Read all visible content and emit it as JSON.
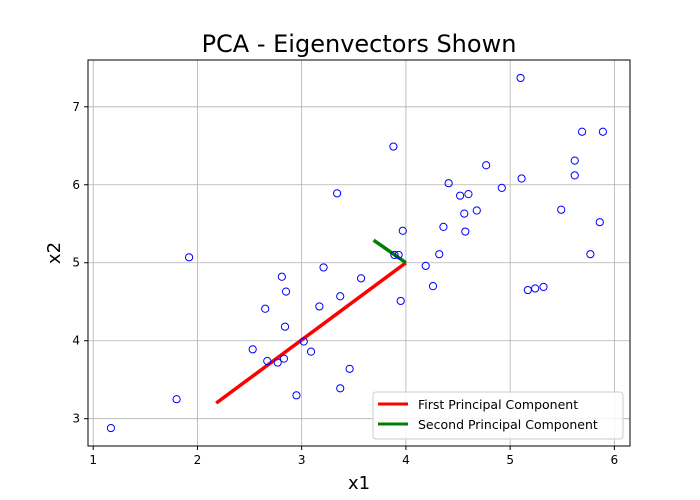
{
  "chart_data": {
    "type": "scatter",
    "title": "PCA - Eigenvectors Shown",
    "xlabel": "x1",
    "ylabel": "x2",
    "xlim": [
      0.95,
      6.15
    ],
    "ylim": [
      2.65,
      7.6
    ],
    "xticks": [
      1,
      2,
      3,
      4,
      5,
      6
    ],
    "yticks": [
      3,
      4,
      5,
      6,
      7
    ],
    "grid": true,
    "legend_position": "bottom-right",
    "colors": {
      "points": "#0000ff",
      "first_component": "#ff0000",
      "second_component": "#008000"
    },
    "points": [
      {
        "x": 1.17,
        "y": 2.88
      },
      {
        "x": 1.8,
        "y": 3.25
      },
      {
        "x": 1.92,
        "y": 5.07
      },
      {
        "x": 2.53,
        "y": 3.89
      },
      {
        "x": 2.65,
        "y": 4.41
      },
      {
        "x": 2.67,
        "y": 3.74
      },
      {
        "x": 2.77,
        "y": 3.72
      },
      {
        "x": 2.81,
        "y": 4.82
      },
      {
        "x": 2.83,
        "y": 3.77
      },
      {
        "x": 2.84,
        "y": 4.18
      },
      {
        "x": 2.85,
        "y": 4.63
      },
      {
        "x": 2.95,
        "y": 3.3
      },
      {
        "x": 3.02,
        "y": 3.99
      },
      {
        "x": 3.09,
        "y": 3.86
      },
      {
        "x": 3.17,
        "y": 4.44
      },
      {
        "x": 3.21,
        "y": 4.94
      },
      {
        "x": 3.34,
        "y": 5.89
      },
      {
        "x": 3.37,
        "y": 3.39
      },
      {
        "x": 3.37,
        "y": 4.57
      },
      {
        "x": 3.46,
        "y": 3.64
      },
      {
        "x": 3.57,
        "y": 4.8
      },
      {
        "x": 3.88,
        "y": 6.49
      },
      {
        "x": 3.89,
        "y": 5.1
      },
      {
        "x": 3.93,
        "y": 5.1
      },
      {
        "x": 3.95,
        "y": 4.51
      },
      {
        "x": 3.97,
        "y": 5.41
      },
      {
        "x": 4.19,
        "y": 4.96
      },
      {
        "x": 4.26,
        "y": 4.7
      },
      {
        "x": 4.32,
        "y": 5.11
      },
      {
        "x": 4.36,
        "y": 5.46
      },
      {
        "x": 4.41,
        "y": 6.02
      },
      {
        "x": 4.52,
        "y": 5.86
      },
      {
        "x": 4.56,
        "y": 5.63
      },
      {
        "x": 4.57,
        "y": 5.4
      },
      {
        "x": 4.6,
        "y": 5.88
      },
      {
        "x": 4.68,
        "y": 5.67
      },
      {
        "x": 4.77,
        "y": 6.25
      },
      {
        "x": 4.92,
        "y": 5.96
      },
      {
        "x": 5.1,
        "y": 7.37
      },
      {
        "x": 5.11,
        "y": 6.08
      },
      {
        "x": 5.17,
        "y": 4.65
      },
      {
        "x": 5.24,
        "y": 4.67
      },
      {
        "x": 5.32,
        "y": 4.69
      },
      {
        "x": 5.49,
        "y": 5.68
      },
      {
        "x": 5.62,
        "y": 6.31
      },
      {
        "x": 5.62,
        "y": 6.12
      },
      {
        "x": 5.69,
        "y": 6.68
      },
      {
        "x": 5.77,
        "y": 5.11
      },
      {
        "x": 5.86,
        "y": 5.52
      },
      {
        "x": 5.89,
        "y": 6.68
      }
    ],
    "series": [
      {
        "name": "First Principal Component",
        "x": [
          2.18,
          4.0
        ],
        "y": [
          3.2,
          5.0
        ]
      },
      {
        "name": "Second Principal Component",
        "x": [
          3.69,
          4.0
        ],
        "y": [
          5.29,
          5.0
        ]
      }
    ]
  }
}
